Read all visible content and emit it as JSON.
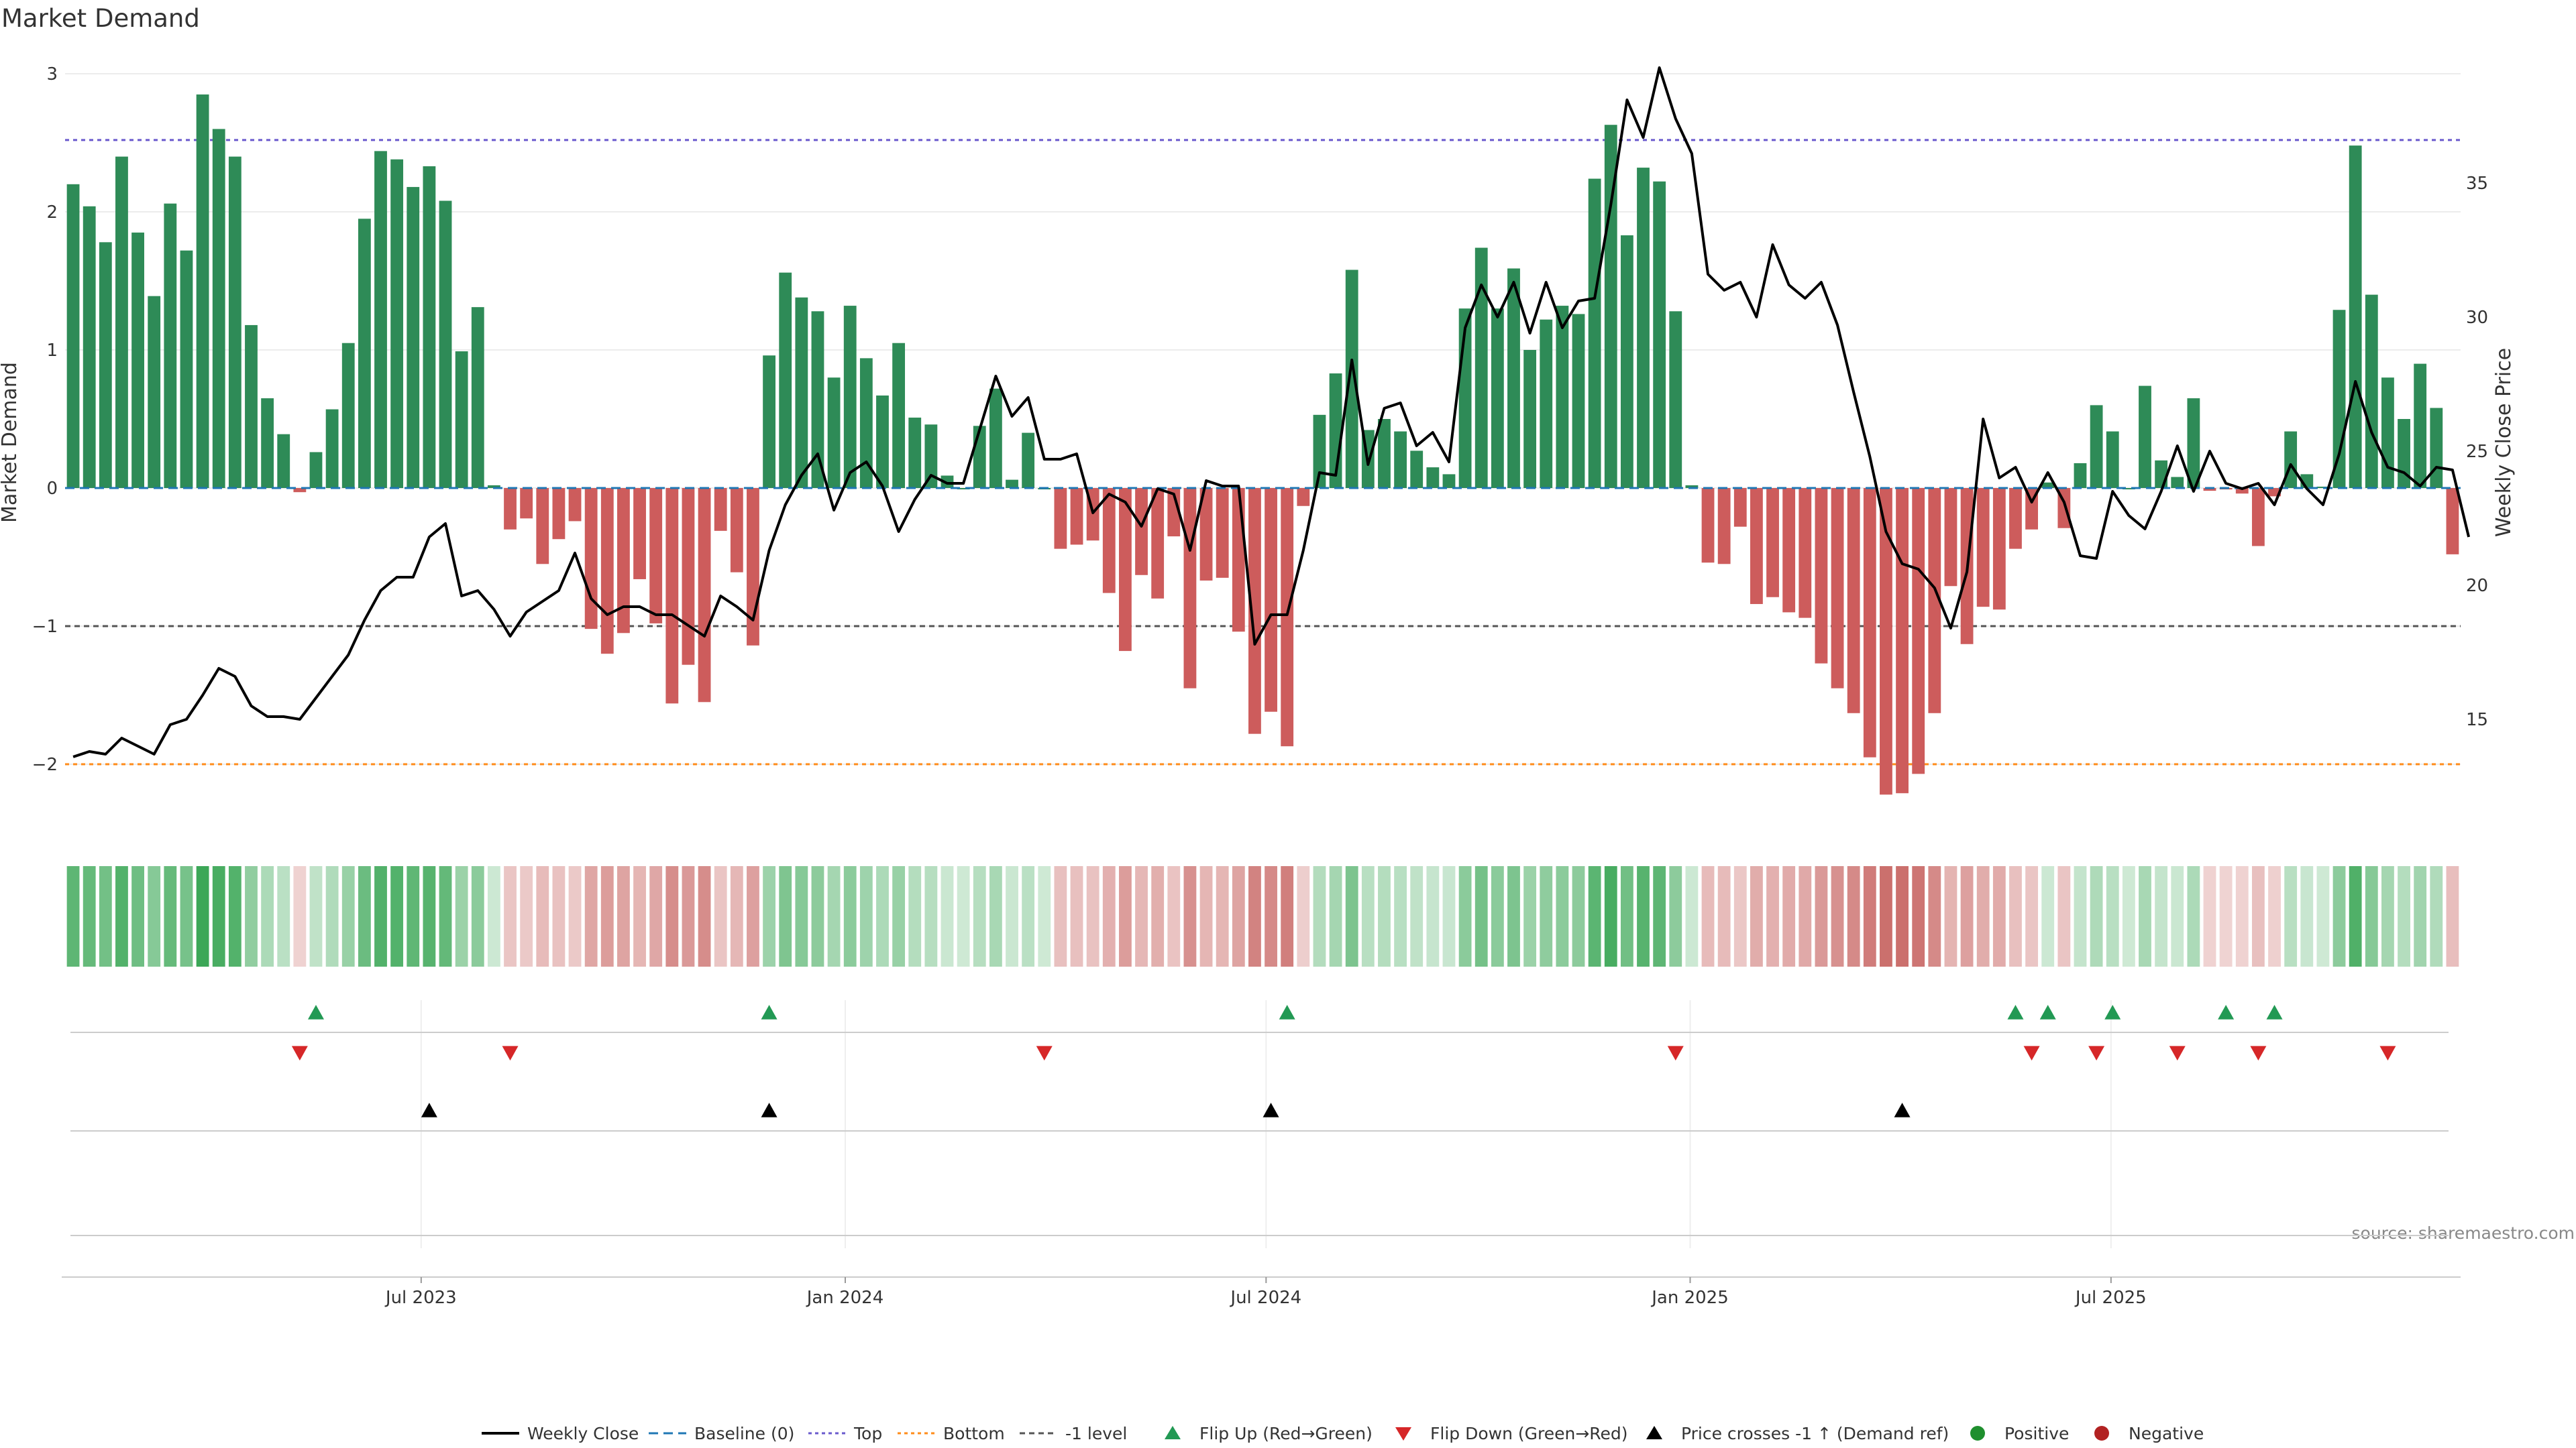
{
  "chart_data": {
    "type": "bar",
    "title": "Market Demand",
    "ylabel_left": "Market Demand",
    "ylabel_right": "Weekly Close Price",
    "ylim_left": [
      -2.5,
      3.0
    ],
    "ylim_right": [
      11.5,
      39.4
    ],
    "left_ticks": [
      "3",
      "2",
      "1",
      "0",
      "−1",
      "−2"
    ],
    "left_tick_values": [
      3,
      2,
      1,
      0,
      -1,
      -2
    ],
    "right_ticks": [
      "35",
      "30",
      "25",
      "20",
      "15"
    ],
    "right_tick_values": [
      35,
      30,
      25,
      20,
      15
    ],
    "levels": {
      "top": 2.52,
      "bottom": -2.0,
      "minus_one": -1.0,
      "baseline": 0
    },
    "x_ticks": [
      {
        "label": "Jul 2023",
        "index": 21.5
      },
      {
        "label": "Jan 2024",
        "index": 47.7
      },
      {
        "label": "Jul 2024",
        "index": 73.7
      },
      {
        "label": "Jan 2025",
        "index": 99.9
      },
      {
        "label": "Jul 2025",
        "index": 125.9
      }
    ],
    "demand": [
      2.2,
      2.04,
      1.78,
      2.4,
      1.85,
      1.39,
      2.06,
      1.72,
      2.85,
      2.6,
      2.4,
      1.18,
      0.65,
      0.39,
      -0.03,
      0.26,
      0.57,
      1.05,
      1.95,
      2.44,
      2.38,
      2.18,
      2.33,
      2.08,
      0.99,
      1.31,
      0.02,
      -0.3,
      -0.22,
      -0.55,
      -0.37,
      -0.24,
      -1.02,
      -1.2,
      -1.05,
      -0.66,
      -0.98,
      -1.56,
      -1.28,
      -1.55,
      -0.31,
      -0.61,
      -1.14,
      0.96,
      1.56,
      1.38,
      1.28,
      0.8,
      1.32,
      0.94,
      0.67,
      1.05,
      0.51,
      0.46,
      0.09,
      0.0,
      0.45,
      0.72,
      0.06,
      0.4,
      0.0,
      -0.44,
      -0.41,
      -0.38,
      -0.76,
      -1.18,
      -0.63,
      -0.8,
      -0.35,
      -1.45,
      -0.67,
      -0.65,
      -1.04,
      -1.78,
      -1.62,
      -1.87,
      -0.13,
      0.53,
      0.83,
      1.58,
      0.42,
      0.5,
      0.41,
      0.27,
      0.15,
      0.1,
      1.3,
      1.74,
      1.3,
      1.59,
      1.0,
      1.22,
      1.32,
      1.26,
      2.24,
      2.63,
      1.83,
      2.32,
      2.22,
      1.28,
      0.02,
      -0.54,
      -0.55,
      -0.28,
      -0.84,
      -0.79,
      -0.9,
      -0.94,
      -1.27,
      -1.45,
      -1.63,
      -1.95,
      -2.22,
      -2.21,
      -2.07,
      -1.63,
      -0.71,
      -1.13,
      -0.86,
      -0.88,
      -0.44,
      -0.3,
      0.04,
      -0.29,
      0.18,
      0.6,
      0.41,
      0.0,
      0.74,
      0.2,
      0.08,
      0.65,
      -0.02,
      -0.01,
      -0.04,
      -0.42,
      -0.06,
      0.41,
      0.1,
      0.01,
      1.29,
      2.48,
      1.4,
      0.8,
      0.5,
      0.9,
      0.58,
      -0.48
    ],
    "close": [
      13.6,
      13.8,
      13.7,
      14.3,
      14.0,
      13.7,
      14.8,
      15.0,
      15.9,
      16.9,
      16.6,
      15.5,
      15.1,
      15.1,
      15.0,
      15.8,
      16.6,
      17.4,
      18.7,
      19.8,
      20.3,
      20.3,
      21.8,
      22.3,
      19.6,
      19.8,
      19.1,
      18.1,
      19.0,
      19.4,
      19.8,
      21.2,
      19.5,
      18.9,
      19.2,
      19.2,
      18.9,
      18.9,
      18.5,
      18.1,
      19.6,
      19.2,
      18.7,
      21.3,
      23.0,
      24.1,
      24.9,
      22.8,
      24.2,
      24.6,
      23.7,
      22.0,
      23.2,
      24.1,
      23.8,
      23.8,
      25.8,
      27.8,
      26.3,
      27.0,
      24.7,
      24.7,
      24.9,
      22.7,
      23.4,
      23.1,
      22.2,
      23.6,
      23.4,
      21.3,
      23.9,
      23.7,
      23.7,
      17.8,
      18.9,
      18.9,
      21.3,
      24.2,
      24.1,
      28.4,
      24.5,
      26.6,
      26.8,
      25.2,
      25.7,
      24.6,
      29.6,
      31.2,
      30.0,
      31.3,
      29.4,
      31.3,
      29.6,
      30.6,
      30.7,
      34.2,
      38.1,
      36.7,
      39.3,
      37.4,
      36.1,
      31.6,
      31.0,
      31.3,
      30.0,
      32.7,
      31.2,
      30.7,
      31.3,
      29.7,
      27.2,
      24.8,
      22.0,
      20.8,
      20.6,
      19.9,
      18.4,
      20.5,
      26.2,
      24.0,
      24.4,
      23.1,
      24.2,
      23.1,
      21.1,
      21.0,
      23.5,
      22.6,
      22.1,
      23.5,
      25.2,
      23.5,
      25.0,
      23.8,
      23.6,
      23.8,
      23.0,
      24.5,
      23.6,
      23.0,
      24.9,
      27.6,
      25.7,
      24.4,
      24.2,
      23.7,
      24.4,
      24.3,
      21.8
    ],
    "flip_up": [
      15,
      43,
      75,
      120,
      122,
      126,
      133,
      136
    ],
    "flip_down": [
      14,
      27,
      60,
      99,
      121,
      125,
      130,
      135,
      143
    ],
    "price_cross": [
      22,
      43,
      74,
      113
    ],
    "source": "source: sharemaestro.com",
    "colors": {
      "green": "#2e8b57",
      "red": "#cd5c5c",
      "price": "#000000",
      "top": "#6a5acd",
      "bottom": "#ff8c1a",
      "minus_one": "#555555",
      "baseline": "#1f77b4",
      "flip_up": "#229954",
      "flip_down": "#d62728",
      "cross": "#000000",
      "positive": "#1f8f2e",
      "negative": "#b22222"
    },
    "legend": [
      {
        "label": "Weekly Close",
        "symbol": "line"
      },
      {
        "label": "Baseline (0)",
        "symbol": "dash-blue"
      },
      {
        "label": "Top",
        "symbol": "dot-purple"
      },
      {
        "label": "Bottom",
        "symbol": "dot-orange"
      },
      {
        "label": "-1 level",
        "symbol": "dash-gray"
      },
      {
        "label": "Flip Up (Red→Green)",
        "symbol": "tri-up-green"
      },
      {
        "label": "Flip Down (Green→Red)",
        "symbol": "tri-down-red"
      },
      {
        "label": "Price crosses -1 ↑ (Demand ref)",
        "symbol": "tri-up-black"
      },
      {
        "label": "Positive",
        "symbol": "dot-green"
      },
      {
        "label": "Negative",
        "symbol": "dot-red"
      }
    ]
  }
}
